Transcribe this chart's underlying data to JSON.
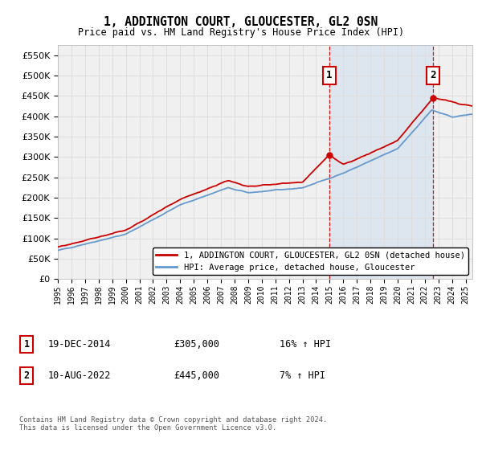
{
  "title": "1, ADDINGTON COURT, GLOUCESTER, GL2 0SN",
  "subtitle": "Price paid vs. HM Land Registry's House Price Index (HPI)",
  "ylim": [
    0,
    575000
  ],
  "yticks": [
    0,
    50000,
    100000,
    150000,
    200000,
    250000,
    300000,
    350000,
    400000,
    450000,
    500000,
    550000
  ],
  "xlim_start": 1995.0,
  "xlim_end": 2025.5,
  "sale1_date": 2014.96,
  "sale1_price": 305000,
  "sale1_label": "1",
  "sale2_date": 2022.61,
  "sale2_price": 445000,
  "sale2_label": "2",
  "legend_line1": "1, ADDINGTON COURT, GLOUCESTER, GL2 0SN (detached house)",
  "legend_line2": "HPI: Average price, detached house, Gloucester",
  "annotation1_date": "19-DEC-2014",
  "annotation1_price": "£305,000",
  "annotation1_hpi": "16% ↑ HPI",
  "annotation2_date": "10-AUG-2022",
  "annotation2_price": "£445,000",
  "annotation2_hpi": "7% ↑ HPI",
  "footnote": "Contains HM Land Registry data © Crown copyright and database right 2024.\nThis data is licensed under the Open Government Licence v3.0.",
  "hpi_color": "#6699cc",
  "price_color": "#cc0000",
  "grid_color": "#dddddd",
  "bg_color": "#ffffff",
  "plot_bg_color": "#f0f0f0",
  "shade_color": "#c8d8ee"
}
